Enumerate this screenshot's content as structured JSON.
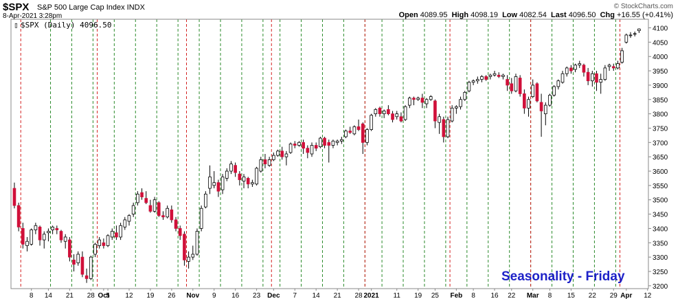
{
  "header": {
    "symbol": "$SPX",
    "name": "S&P 500 Large Cap Index INDX",
    "timestamp": "8-Apr-2021 3:28pm",
    "open_label": "Open",
    "open_value": "4089.95",
    "high_label": "High",
    "high_value": "4098.19",
    "low_label": "Low",
    "low_value": "4082.54",
    "last_label": "Last",
    "last_value": "4096.50",
    "chg_label": "Chg",
    "chg_value": "+16.55 (+0.41%)",
    "brand": "© StockCharts.com",
    "legend": "$SPX (Daily) 4096.50",
    "legend_icon": "candlestick-icon"
  },
  "annotation": "Seasonality - Friday",
  "colors": {
    "up": "#ffffff",
    "down": "#d0103a",
    "outline": "#000000",
    "friday_line": "#2a8a2a",
    "month_line": "#d42020",
    "text_blue": "#1e22c8"
  },
  "chart_data": {
    "type": "candlestick",
    "ylim": [
      3190,
      4130
    ],
    "y_ticks": [
      3200,
      3250,
      3300,
      3350,
      3400,
      3450,
      3500,
      3550,
      3600,
      3650,
      3700,
      3750,
      3800,
      3850,
      3900,
      3950,
      4000,
      4050,
      4100
    ],
    "x_tick_labels": [
      {
        "label": "8",
        "bar": 4
      },
      {
        "label": "14",
        "bar": 8
      },
      {
        "label": "21",
        "bar": 13
      },
      {
        "label": "28",
        "bar": 18
      },
      {
        "label": "Oct",
        "bar": 21,
        "bold": true
      },
      {
        "label": "5",
        "bar": 22
      },
      {
        "label": "12",
        "bar": 27
      },
      {
        "label": "19",
        "bar": 32
      },
      {
        "label": "26",
        "bar": 37
      },
      {
        "label": "Nov",
        "bar": 42,
        "bold": true
      },
      {
        "label": "9",
        "bar": 47
      },
      {
        "label": "16",
        "bar": 52
      },
      {
        "label": "23",
        "bar": 57
      },
      {
        "label": "Dec",
        "bar": 61,
        "bold": true
      },
      {
        "label": "7",
        "bar": 66
      },
      {
        "label": "14",
        "bar": 71
      },
      {
        "label": "21",
        "bar": 76
      },
      {
        "label": "28",
        "bar": 81
      },
      {
        "label": "2021",
        "bar": 84,
        "bold": true
      },
      {
        "label": "11",
        "bar": 90
      },
      {
        "label": "19",
        "bar": 95
      },
      {
        "label": "25",
        "bar": 99
      },
      {
        "label": "Feb",
        "bar": 104,
        "bold": true
      },
      {
        "label": "8",
        "bar": 108
      },
      {
        "label": "16",
        "bar": 113
      },
      {
        "label": "22",
        "bar": 117
      },
      {
        "label": "Mar",
        "bar": 122,
        "bold": true
      },
      {
        "label": "8",
        "bar": 126
      },
      {
        "label": "15",
        "bar": 131
      },
      {
        "label": "22",
        "bar": 136
      },
      {
        "label": "29",
        "bar": 141
      },
      {
        "label": "Apr",
        "bar": 144,
        "bold": true
      },
      {
        "label": "12",
        "bar": 149
      }
    ],
    "friday_bars": [
      8,
      13,
      18,
      23,
      28,
      33,
      38,
      43,
      48,
      53,
      58,
      62,
      67,
      72,
      77,
      82,
      86,
      91,
      96,
      101,
      106,
      111,
      116,
      121,
      126,
      131,
      136,
      141
    ],
    "month_bars": [
      2,
      20,
      41,
      61,
      83,
      103,
      122,
      143
    ],
    "ohlc": [
      [
        3540,
        3560,
        3470,
        3480
      ],
      [
        3480,
        3490,
        3390,
        3405
      ],
      [
        3400,
        3420,
        3330,
        3345
      ],
      [
        3340,
        3370,
        3320,
        3355
      ],
      [
        3345,
        3400,
        3340,
        3395
      ],
      [
        3395,
        3420,
        3380,
        3410
      ],
      [
        3405,
        3410,
        3340,
        3360
      ],
      [
        3360,
        3390,
        3330,
        3380
      ],
      [
        3385,
        3400,
        3355,
        3390
      ],
      [
        3395,
        3410,
        3380,
        3405
      ],
      [
        3400,
        3410,
        3380,
        3395
      ],
      [
        3390,
        3395,
        3350,
        3360
      ],
      [
        3355,
        3380,
        3330,
        3370
      ],
      [
        3360,
        3370,
        3285,
        3300
      ],
      [
        3290,
        3310,
        3250,
        3275
      ],
      [
        3280,
        3320,
        3270,
        3310
      ],
      [
        3300,
        3320,
        3230,
        3240
      ],
      [
        3235,
        3260,
        3210,
        3225
      ],
      [
        3225,
        3305,
        3220,
        3300
      ],
      [
        3310,
        3350,
        3300,
        3345
      ],
      [
        3340,
        3370,
        3330,
        3360
      ],
      [
        3350,
        3365,
        3330,
        3340
      ],
      [
        3340,
        3380,
        3335,
        3375
      ],
      [
        3370,
        3400,
        3360,
        3390
      ],
      [
        3385,
        3410,
        3360,
        3370
      ],
      [
        3370,
        3420,
        3360,
        3410
      ],
      [
        3405,
        3440,
        3395,
        3430
      ],
      [
        3425,
        3450,
        3410,
        3445
      ],
      [
        3450,
        3490,
        3440,
        3480
      ],
      [
        3490,
        3530,
        3480,
        3520
      ],
      [
        3525,
        3540,
        3500,
        3510
      ],
      [
        3505,
        3530,
        3485,
        3490
      ],
      [
        3480,
        3500,
        3455,
        3460
      ],
      [
        3460,
        3510,
        3455,
        3500
      ],
      [
        3490,
        3495,
        3440,
        3445
      ],
      [
        3445,
        3460,
        3430,
        3440
      ],
      [
        3440,
        3480,
        3435,
        3470
      ],
      [
        3465,
        3480,
        3420,
        3430
      ],
      [
        3430,
        3440,
        3390,
        3400
      ],
      [
        3400,
        3410,
        3360,
        3375
      ],
      [
        3380,
        3390,
        3270,
        3290
      ],
      [
        3285,
        3320,
        3260,
        3300
      ],
      [
        3300,
        3340,
        3290,
        3310
      ],
      [
        3310,
        3400,
        3305,
        3390
      ],
      [
        3400,
        3480,
        3390,
        3470
      ],
      [
        3475,
        3530,
        3470,
        3520
      ],
      [
        3540,
        3620,
        3520,
        3580
      ],
      [
        3550,
        3600,
        3540,
        3560
      ],
      [
        3560,
        3570,
        3510,
        3530
      ],
      [
        3535,
        3590,
        3520,
        3580
      ],
      [
        3575,
        3610,
        3565,
        3600
      ],
      [
        3600,
        3635,
        3590,
        3625
      ],
      [
        3620,
        3630,
        3580,
        3595
      ],
      [
        3590,
        3600,
        3550,
        3570
      ],
      [
        3565,
        3590,
        3540,
        3580
      ],
      [
        3575,
        3580,
        3540,
        3555
      ],
      [
        3555,
        3570,
        3545,
        3560
      ],
      [
        3555,
        3615,
        3550,
        3610
      ],
      [
        3600,
        3650,
        3595,
        3640
      ],
      [
        3640,
        3660,
        3610,
        3625
      ],
      [
        3620,
        3650,
        3615,
        3640
      ],
      [
        3640,
        3665,
        3635,
        3655
      ],
      [
        3655,
        3675,
        3650,
        3670
      ],
      [
        3670,
        3685,
        3640,
        3650
      ],
      [
        3650,
        3670,
        3620,
        3660
      ],
      [
        3665,
        3700,
        3660,
        3695
      ],
      [
        3695,
        3705,
        3680,
        3690
      ],
      [
        3690,
        3705,
        3685,
        3700
      ],
      [
        3700,
        3710,
        3660,
        3680
      ],
      [
        3680,
        3690,
        3645,
        3665
      ],
      [
        3660,
        3700,
        3650,
        3690
      ],
      [
        3690,
        3700,
        3670,
        3680
      ],
      [
        3685,
        3720,
        3680,
        3715
      ],
      [
        3715,
        3720,
        3680,
        3690
      ],
      [
        3700,
        3710,
        3630,
        3690
      ],
      [
        3690,
        3710,
        3680,
        3705
      ],
      [
        3700,
        3710,
        3690,
        3705
      ],
      [
        3705,
        3720,
        3695,
        3710
      ],
      [
        3720,
        3745,
        3715,
        3740
      ],
      [
        3740,
        3755,
        3730,
        3735
      ],
      [
        3730,
        3760,
        3725,
        3755
      ],
      [
        3755,
        3780,
        3740,
        3745
      ],
      [
        3765,
        3770,
        3660,
        3700
      ],
      [
        3700,
        3750,
        3690,
        3745
      ],
      [
        3745,
        3800,
        3740,
        3795
      ],
      [
        3800,
        3820,
        3790,
        3815
      ],
      [
        3820,
        3825,
        3790,
        3800
      ],
      [
        3800,
        3815,
        3785,
        3810
      ],
      [
        3815,
        3830,
        3795,
        3800
      ],
      [
        3800,
        3810,
        3770,
        3780
      ],
      [
        3790,
        3810,
        3780,
        3800
      ],
      [
        3790,
        3805,
        3770,
        3775
      ],
      [
        3780,
        3830,
        3775,
        3825
      ],
      [
        3830,
        3860,
        3820,
        3855
      ],
      [
        3855,
        3860,
        3830,
        3850
      ],
      [
        3850,
        3860,
        3845,
        3855
      ],
      [
        3855,
        3870,
        3820,
        3840
      ],
      [
        3835,
        3855,
        3820,
        3850
      ],
      [
        3850,
        3865,
        3845,
        3860
      ],
      [
        3845,
        3850,
        3750,
        3775
      ],
      [
        3770,
        3800,
        3730,
        3790
      ],
      [
        3780,
        3790,
        3700,
        3720
      ],
      [
        3720,
        3790,
        3715,
        3780
      ],
      [
        3775,
        3830,
        3770,
        3820
      ],
      [
        3820,
        3830,
        3800,
        3825
      ],
      [
        3825,
        3860,
        3815,
        3850
      ],
      [
        3850,
        3880,
        3845,
        3875
      ],
      [
        3880,
        3915,
        3875,
        3910
      ],
      [
        3910,
        3920,
        3900,
        3915
      ],
      [
        3915,
        3930,
        3905,
        3920
      ],
      [
        3920,
        3935,
        3910,
        3930
      ],
      [
        3930,
        3935,
        3915,
        3920
      ],
      [
        3930,
        3940,
        3920,
        3935
      ],
      [
        3935,
        3950,
        3930,
        3940
      ],
      [
        3935,
        3945,
        3925,
        3930
      ],
      [
        3930,
        3940,
        3920,
        3935
      ],
      [
        3920,
        3935,
        3880,
        3900
      ],
      [
        3905,
        3925,
        3870,
        3880
      ],
      [
        3880,
        3940,
        3875,
        3930
      ],
      [
        3925,
        3935,
        3860,
        3870
      ],
      [
        3870,
        3885,
        3800,
        3820
      ],
      [
        3820,
        3860,
        3790,
        3850
      ],
      [
        3860,
        3920,
        3855,
        3900
      ],
      [
        3905,
        3910,
        3840,
        3845
      ],
      [
        3840,
        3870,
        3720,
        3810
      ],
      [
        3800,
        3840,
        3760,
        3830
      ],
      [
        3830,
        3870,
        3825,
        3865
      ],
      [
        3865,
        3900,
        3860,
        3895
      ],
      [
        3895,
        3920,
        3885,
        3915
      ],
      [
        3910,
        3950,
        3905,
        3940
      ],
      [
        3940,
        3965,
        3930,
        3960
      ],
      [
        3960,
        3970,
        3940,
        3950
      ],
      [
        3955,
        3975,
        3945,
        3970
      ],
      [
        3970,
        3985,
        3960,
        3975
      ],
      [
        3970,
        3975,
        3930,
        3945
      ],
      [
        3945,
        3960,
        3900,
        3915
      ],
      [
        3915,
        3950,
        3895,
        3940
      ],
      [
        3940,
        3950,
        3880,
        3910
      ],
      [
        3910,
        3940,
        3870,
        3920
      ],
      [
        3920,
        3970,
        3915,
        3960
      ],
      [
        3965,
        3975,
        3950,
        3970
      ],
      [
        3965,
        3975,
        3950,
        3960
      ],
      [
        3960,
        3985,
        3955,
        3975
      ],
      [
        3980,
        4030,
        3975,
        4020
      ],
      [
        4050,
        4080,
        4045,
        4075
      ],
      [
        4075,
        4085,
        4065,
        4075
      ],
      [
        4078,
        4087,
        4070,
        4080
      ],
      [
        4090,
        4098,
        4082,
        4096
      ]
    ]
  }
}
